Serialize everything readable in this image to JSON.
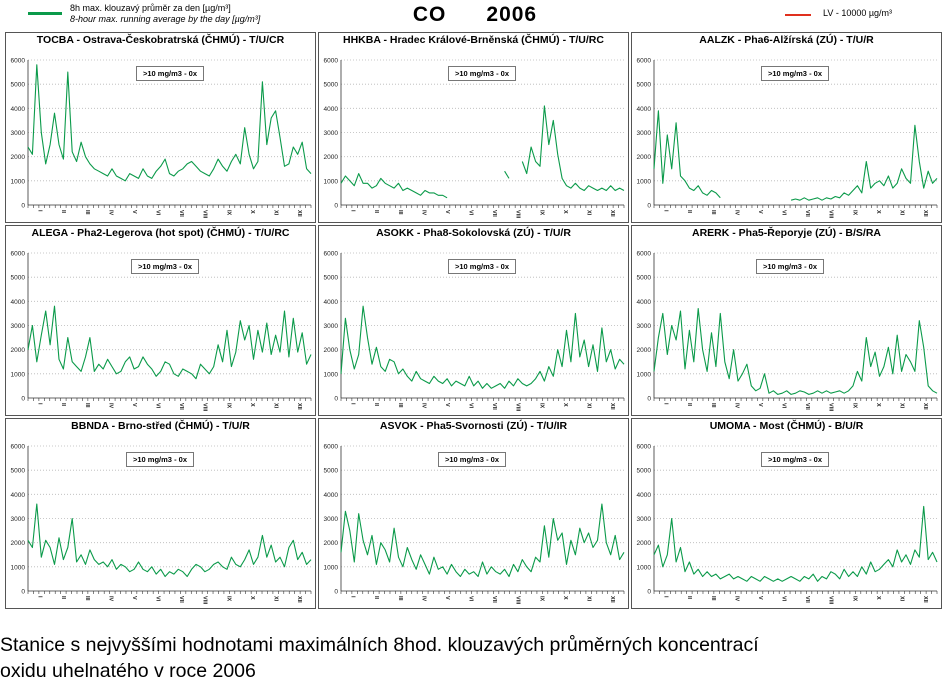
{
  "title": "CO      2006",
  "title_parts": [
    "CO",
    "2006"
  ],
  "legend": {
    "series_line_label_1": "8h max. klouzavý průměr za den [µg/m³]",
    "series_line_label_2": "8-hour max. running average by the day [µg/m³]",
    "series_color": "#0b9a4a",
    "limit_label": "LV - 10000 µg/m³",
    "limit_color": "#e0301e"
  },
  "caption": {
    "line1": "Stanice s nejvyššími hodnotami maximálních 8hod. klouzavých průměrných koncentrací",
    "line2": "oxidu uhelnatého v roce 2006"
  },
  "chart_data": [
    {
      "type": "line",
      "title": "TOCBA - Ostrava-Českobratrská (ČHMÚ) - T/U/CR",
      "annotation": ">10 mg/m3 - 0x",
      "yticks": [
        0,
        1000,
        2000,
        3000,
        4000,
        5000,
        6000
      ],
      "ylim": [
        0,
        6000
      ],
      "xticks": [
        "I",
        "II",
        "III",
        "IV",
        "V",
        "VI",
        "VII",
        "VIII",
        "IX",
        "X",
        "XI",
        "XII"
      ],
      "series": [
        {
          "color": "#0b9a4a",
          "values": [
            2400,
            2100,
            5800,
            3000,
            1700,
            2500,
            3800,
            2500,
            1900,
            5500,
            2200,
            1800,
            2600,
            2000,
            1700,
            1500,
            1400,
            1300,
            1200,
            1500,
            1200,
            1100,
            1000,
            1300,
            1200,
            1100,
            1500,
            1200,
            1100,
            1400,
            1600,
            1900,
            1300,
            1200,
            1400,
            1500,
            1700,
            1800,
            1600,
            1400,
            1300,
            1200,
            1500,
            1900,
            1600,
            1400,
            1800,
            2100,
            1700,
            3200,
            2100,
            1500,
            1800,
            5100,
            2500,
            3600,
            3900,
            2800,
            1600,
            1700,
            2400,
            2100,
            2600,
            1500,
            1300
          ]
        }
      ]
    },
    {
      "type": "line",
      "title": "HHKBA - Hradec Králové-Brněnská (ČHMÚ) - T/U/RC",
      "annotation": ">10 mg/m3 - 0x",
      "yticks": [
        0,
        1000,
        2000,
        3000,
        4000,
        5000,
        6000
      ],
      "ylim": [
        0,
        6000
      ],
      "xticks": [
        "I",
        "II",
        "III",
        "IV",
        "V",
        "VI",
        "VII",
        "VIII",
        "IX",
        "X",
        "XI",
        "XII"
      ],
      "series": [
        {
          "color": "#0b9a4a",
          "values": [
            900,
            1200,
            1000,
            800,
            1300,
            900,
            900,
            700,
            800,
            1100,
            900,
            800,
            700,
            900,
            600,
            700,
            600,
            500,
            400,
            600,
            500,
            500,
            400,
            400,
            300,
            null,
            null,
            null,
            null,
            null,
            null,
            null,
            null,
            null,
            null,
            null,
            null,
            1400,
            1100,
            null,
            null,
            1800,
            1300,
            2400,
            1800,
            1600,
            4100,
            2500,
            3500,
            2100,
            1100,
            800,
            700,
            900,
            700,
            600,
            800,
            700,
            600,
            700,
            600,
            800,
            600,
            700,
            600
          ]
        }
      ]
    },
    {
      "type": "line",
      "title": "AALZK - Pha6-Alžírská (ZÚ) - T/U/R",
      "annotation": ">10 mg/m3 - 0x",
      "yticks": [
        0,
        1000,
        2000,
        3000,
        4000,
        5000,
        6000
      ],
      "ylim": [
        0,
        6000
      ],
      "xticks": [
        "I",
        "II",
        "III",
        "IV",
        "V",
        "VI",
        "VII",
        "VIII",
        "IX",
        "X",
        "XI",
        "XII"
      ],
      "series": [
        {
          "color": "#0b9a4a",
          "values": [
            1500,
            3900,
            900,
            2900,
            1500,
            3400,
            1200,
            1000,
            700,
            600,
            800,
            500,
            400,
            600,
            500,
            300,
            null,
            null,
            null,
            null,
            null,
            null,
            null,
            null,
            null,
            null,
            null,
            null,
            null,
            null,
            null,
            200,
            250,
            200,
            300,
            200,
            250,
            300,
            200,
            300,
            250,
            350,
            300,
            500,
            400,
            600,
            800,
            500,
            1800,
            700,
            900,
            1000,
            800,
            1200,
            700,
            900,
            1500,
            1100,
            900,
            3300,
            1800,
            700,
            1400,
            900,
            1100
          ]
        }
      ]
    },
    {
      "type": "line",
      "title": "ALEGA - Pha2-Legerova (hot spot) (ČHMÚ) - T/U/RC",
      "annotation": ">10 mg/m3 - 0x",
      "yticks": [
        0,
        1000,
        2000,
        3000,
        4000,
        5000,
        6000
      ],
      "ylim": [
        0,
        6000
      ],
      "xticks": [
        "I",
        "II",
        "III",
        "IV",
        "V",
        "VI",
        "VII",
        "VIII",
        "IX",
        "X",
        "XI",
        "XII"
      ],
      "series": [
        {
          "color": "#0b9a4a",
          "values": [
            2000,
            3000,
            1500,
            2600,
            3600,
            2200,
            3800,
            1600,
            1200,
            2500,
            1500,
            1300,
            1100,
            1700,
            2500,
            1100,
            1400,
            1200,
            1600,
            1300,
            1000,
            1100,
            1500,
            1700,
            1200,
            1300,
            1700,
            1400,
            1200,
            900,
            1100,
            1500,
            1400,
            1000,
            900,
            1200,
            1100,
            1000,
            800,
            1400,
            1200,
            1000,
            1300,
            2200,
            1500,
            2800,
            1300,
            1900,
            3200,
            2400,
            3000,
            1600,
            2800,
            1900,
            3100,
            1800,
            2600,
            1900,
            3600,
            1700,
            3300,
            1900,
            2700,
            1400,
            1800
          ]
        }
      ]
    },
    {
      "type": "line",
      "title": "ASOKK - Pha8-Sokolovská (ZÚ) - T/U/R",
      "annotation": ">10 mg/m3 - 0x",
      "yticks": [
        0,
        1000,
        2000,
        3000,
        4000,
        5000,
        6000
      ],
      "ylim": [
        0,
        6000
      ],
      "xticks": [
        "I",
        "II",
        "III",
        "IV",
        "V",
        "VI",
        "VII",
        "VIII",
        "IX",
        "X",
        "XI",
        "XII"
      ],
      "series": [
        {
          "color": "#0b9a4a",
          "values": [
            1000,
            3300,
            2000,
            1200,
            1800,
            3800,
            2500,
            1400,
            2100,
            1300,
            1100,
            1600,
            1500,
            1000,
            1200,
            900,
            700,
            1100,
            800,
            700,
            600,
            900,
            700,
            600,
            800,
            500,
            700,
            600,
            500,
            900,
            500,
            700,
            400,
            600,
            400,
            500,
            600,
            400,
            700,
            500,
            800,
            600,
            500,
            600,
            800,
            1100,
            700,
            1300,
            900,
            2000,
            1300,
            2800,
            1500,
            3500,
            1700,
            2400,
            1300,
            2200,
            1100,
            2900,
            1500,
            2000,
            1200,
            1600,
            1400
          ]
        }
      ]
    },
    {
      "type": "line",
      "title": "ARERK - Pha5-Řeporyje (ZÚ) - B/S/RA",
      "annotation": ">10 mg/m3 - 0x",
      "yticks": [
        0,
        1000,
        2000,
        3000,
        4000,
        5000,
        6000
      ],
      "ylim": [
        0,
        6000
      ],
      "xticks": [
        "I",
        "II",
        "III",
        "IV",
        "V",
        "VI",
        "VII",
        "VIII",
        "IX",
        "X",
        "XI",
        "XII"
      ],
      "series": [
        {
          "color": "#0b9a4a",
          "values": [
            1100,
            2500,
            3500,
            1800,
            3000,
            2400,
            3600,
            1200,
            2800,
            1500,
            3700,
            2000,
            1100,
            2700,
            1300,
            3500,
            1500,
            800,
            2000,
            700,
            1000,
            1400,
            500,
            300,
            400,
            1000,
            200,
            300,
            150,
            200,
            300,
            150,
            200,
            300,
            250,
            150,
            200,
            300,
            200,
            300,
            200,
            250,
            300,
            200,
            300,
            500,
            1100,
            700,
            2500,
            1300,
            1900,
            900,
            1300,
            2100,
            1000,
            2600,
            1100,
            1800,
            1500,
            1100,
            3200,
            2100,
            500,
            300,
            200
          ]
        }
      ]
    },
    {
      "type": "line",
      "title": "BBNDA - Brno-střed (ČHMÚ) - T/U/R",
      "annotation": ">10 mg/m3 - 0x",
      "yticks": [
        0,
        1000,
        2000,
        3000,
        4000,
        5000,
        6000
      ],
      "ylim": [
        0,
        6000
      ],
      "xticks": [
        "I",
        "II",
        "III",
        "IV",
        "V",
        "VI",
        "VII",
        "VIII",
        "IX",
        "X",
        "XI",
        "XII"
      ],
      "series": [
        {
          "color": "#0b9a4a",
          "values": [
            2100,
            1800,
            3600,
            1400,
            2100,
            1800,
            1100,
            2200,
            1300,
            1800,
            3000,
            1200,
            1500,
            1100,
            1700,
            1300,
            1100,
            1200,
            1000,
            1300,
            900,
            1100,
            1000,
            800,
            900,
            1200,
            900,
            800,
            1000,
            700,
            900,
            600,
            800,
            700,
            900,
            800,
            600,
            900,
            1100,
            1000,
            800,
            900,
            1100,
            1200,
            1000,
            900,
            1400,
            1100,
            1000,
            1300,
            1700,
            1100,
            1400,
            2300,
            1400,
            1900,
            1200,
            1400,
            1000,
            1800,
            2100,
            1300,
            1600,
            1100,
            1300
          ]
        }
      ]
    },
    {
      "type": "line",
      "title": "ASVOK - Pha5-Svornosti (ZÚ) - T/U/IR",
      "annotation": ">10 mg/m3 - 0x",
      "yticks": [
        0,
        1000,
        2000,
        3000,
        4000,
        5000,
        6000
      ],
      "ylim": [
        0,
        6000
      ],
      "xticks": [
        "I",
        "II",
        "III",
        "IV",
        "V",
        "VI",
        "VII",
        "VIII",
        "IX",
        "X",
        "XI",
        "XII"
      ],
      "series": [
        {
          "color": "#0b9a4a",
          "values": [
            1600,
            3300,
            2500,
            1200,
            3200,
            2100,
            1500,
            2300,
            1100,
            2000,
            1700,
            1200,
            2600,
            1400,
            1000,
            1800,
            1300,
            900,
            1500,
            1100,
            700,
            1400,
            900,
            1000,
            700,
            1100,
            800,
            600,
            900,
            700,
            800,
            600,
            1200,
            700,
            1000,
            800,
            700,
            900,
            600,
            1100,
            800,
            1300,
            1000,
            800,
            1400,
            1200,
            2700,
            1400,
            3000,
            2100,
            2400,
            1100,
            2100,
            1500,
            2600,
            2000,
            2400,
            1800,
            2100,
            3600,
            2000,
            1500,
            2300,
            1300,
            1600
          ]
        }
      ]
    },
    {
      "type": "line",
      "title": "UMOMA - Most (ČHMÚ) - B/U/R",
      "annotation": ">10 mg/m3 - 0x",
      "yticks": [
        0,
        1000,
        2000,
        3000,
        4000,
        5000,
        6000
      ],
      "ylim": [
        0,
        6000
      ],
      "xticks": [
        "I",
        "II",
        "III",
        "IV",
        "V",
        "VI",
        "VII",
        "VIII",
        "IX",
        "X",
        "XI",
        "XII"
      ],
      "series": [
        {
          "color": "#0b9a4a",
          "values": [
            1500,
            1900,
            1000,
            1500,
            3000,
            1200,
            1800,
            800,
            1200,
            700,
            900,
            600,
            800,
            600,
            700,
            500,
            600,
            700,
            500,
            600,
            500,
            400,
            600,
            500,
            400,
            600,
            500,
            400,
            500,
            400,
            500,
            600,
            500,
            400,
            600,
            500,
            700,
            400,
            600,
            500,
            800,
            700,
            500,
            900,
            600,
            800,
            600,
            1000,
            700,
            1200,
            800,
            900,
            1100,
            1300,
            1000,
            1700,
            1200,
            1500,
            1100,
            1700,
            1400,
            3500,
            1300,
            1600,
            1200
          ]
        }
      ]
    }
  ]
}
